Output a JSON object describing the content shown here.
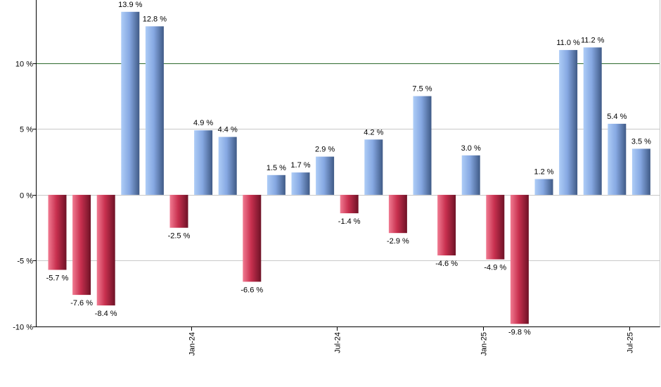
{
  "chart_data": {
    "type": "bar",
    "title": "",
    "xlabel": "",
    "ylabel": "",
    "ylim": [
      -10,
      14.8
    ],
    "yticks": [
      -10,
      -5,
      0,
      5,
      10
    ],
    "ytick_labels": [
      "-10 %",
      "-5 %",
      "0 %",
      "5 %",
      "10 %"
    ],
    "reference_line": 10,
    "grid": "horizontal",
    "values": [
      -5.7,
      -7.6,
      -8.4,
      13.9,
      12.8,
      -2.5,
      4.9,
      4.4,
      -6.6,
      1.5,
      1.7,
      2.9,
      -1.4,
      4.2,
      -2.9,
      7.5,
      -4.6,
      3.0,
      -4.9,
      -9.8,
      1.2,
      11.0,
      11.2,
      5.4,
      3.5
    ],
    "value_labels": [
      "-5.7 %",
      "-7.6 %",
      "-8.4 %",
      "13.9 %",
      "12.8 %",
      "-2.5 %",
      "4.9 %",
      "4.4 %",
      "-6.6 %",
      "1.5 %",
      "1.7 %",
      "2.9 %",
      "-1.4 %",
      "4.2 %",
      "-2.9 %",
      "7.5 %",
      "-4.6 %",
      "3.0 %",
      "-4.9 %",
      "-9.8 %",
      "1.2 %",
      "11.0 %",
      "11.2 %",
      "5.4 %",
      "3.5 %"
    ],
    "x_ticks": [
      {
        "label": "Jan-24",
        "after_bar": 5
      },
      {
        "label": "Jul-24",
        "after_bar": 11
      },
      {
        "label": "Jan-25",
        "after_bar": 17
      },
      {
        "label": "Jul-25",
        "after_bar": 23
      }
    ],
    "colors": {
      "positive_light": "#aecdf7",
      "positive_mid": "#86a8e2",
      "positive_dark": "#3f5a86",
      "negative_light": "#f17b92",
      "negative_mid": "#c8304f",
      "negative_dark": "#6e1226",
      "reference_line": "#2e6b2e",
      "grid": "#c8c8c8",
      "axis": "#000000"
    }
  }
}
